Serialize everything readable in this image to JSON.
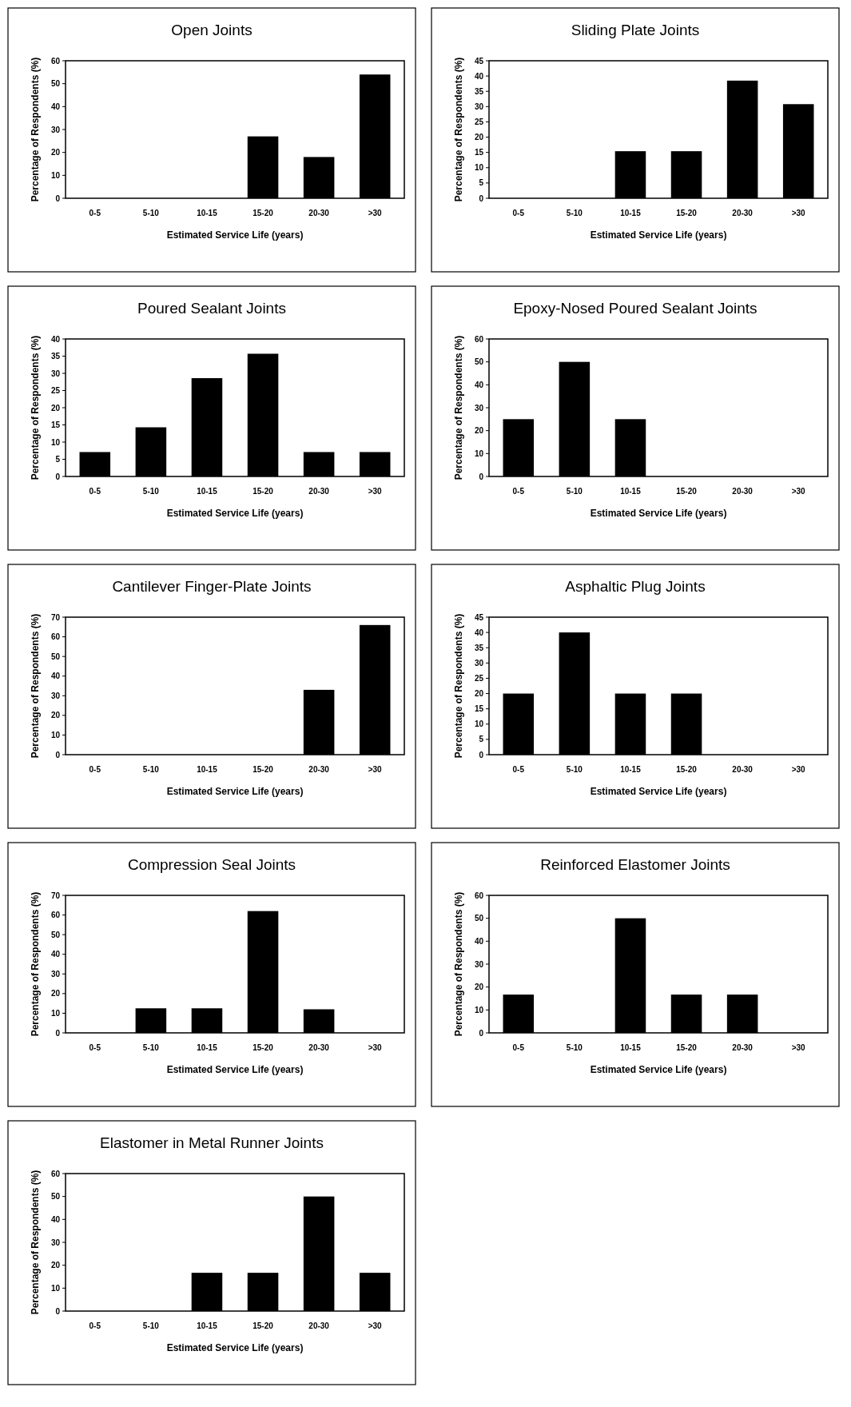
{
  "chart_data": [
    {
      "type": "bar",
      "title": "Open Joints",
      "xlabel": "Estimated Service Life (years)",
      "ylabel": "Percentage of Respondents (%)",
      "categories": [
        "0-5",
        "5-10",
        "10-15",
        "15-20",
        "20-30",
        ">30"
      ],
      "values": [
        0,
        0,
        0,
        27,
        18,
        54
      ],
      "color": "#000000",
      "ylim": [
        0,
        60
      ],
      "yticks": [
        0,
        10,
        20,
        30,
        40,
        50,
        60
      ]
    },
    {
      "type": "bar",
      "title": "Sliding Plate Joints",
      "xlabel": "Estimated Service Life (years)",
      "ylabel": "Percentage of Respondents (%)",
      "categories": [
        "0-5",
        "5-10",
        "10-15",
        "15-20",
        "20-30",
        ">30"
      ],
      "values": [
        0,
        0,
        15.4,
        15.4,
        38.5,
        30.8
      ],
      "color": "#000000",
      "ylim": [
        0,
        45
      ],
      "yticks": [
        0,
        5,
        10,
        15,
        20,
        25,
        30,
        35,
        40,
        45
      ]
    },
    {
      "type": "bar",
      "title": "Poured Sealant Joints",
      "xlabel": "Estimated Service Life (years)",
      "ylabel": "Percentage of Respondents (%)",
      "categories": [
        "0-5",
        "5-10",
        "10-15",
        "15-20",
        "20-30",
        ">30"
      ],
      "values": [
        7.1,
        14.3,
        28.6,
        35.7,
        7.1,
        7.1
      ],
      "color": "#000000",
      "ylim": [
        0,
        40
      ],
      "yticks": [
        0,
        5,
        10,
        15,
        20,
        25,
        30,
        35,
        40
      ]
    },
    {
      "type": "bar",
      "title": "Epoxy-Nosed Poured Sealant Joints",
      "xlabel": "Estimated Service Life (years)",
      "ylabel": "Percentage of Respondents (%)",
      "categories": [
        "0-5",
        "5-10",
        "10-15",
        "15-20",
        "20-30",
        ">30"
      ],
      "values": [
        25,
        50,
        25,
        0,
        0,
        0
      ],
      "color": "#000000",
      "ylim": [
        0,
        60
      ],
      "yticks": [
        0,
        10,
        20,
        30,
        40,
        50,
        60
      ]
    },
    {
      "type": "bar",
      "title": "Cantilever Finger-Plate Joints",
      "xlabel": "Estimated Service Life (years)",
      "ylabel": "Percentage of Respondents (%)",
      "categories": [
        "0-5",
        "5-10",
        "10-15",
        "15-20",
        "20-30",
        ">30"
      ],
      "values": [
        0,
        0,
        0,
        0,
        33,
        66
      ],
      "color": "#000000",
      "ylim": [
        0,
        70
      ],
      "yticks": [
        0,
        10,
        20,
        30,
        40,
        50,
        60,
        70
      ]
    },
    {
      "type": "bar",
      "title": "Asphaltic Plug Joints",
      "xlabel": "Estimated Service Life (years)",
      "ylabel": "Percentage of Respondents (%)",
      "categories": [
        "0-5",
        "5-10",
        "10-15",
        "15-20",
        "20-30",
        ">30"
      ],
      "values": [
        20,
        40,
        20,
        20,
        0,
        0
      ],
      "color": "#000000",
      "ylim": [
        0,
        45
      ],
      "yticks": [
        0,
        5,
        10,
        15,
        20,
        25,
        30,
        35,
        40,
        45
      ]
    },
    {
      "type": "bar",
      "title": "Compression Seal Joints",
      "xlabel": "Estimated Service Life (years)",
      "ylabel": "Percentage of Respondents (%)",
      "categories": [
        "0-5",
        "5-10",
        "10-15",
        "15-20",
        "20-30",
        ">30"
      ],
      "values": [
        0,
        12.5,
        12.5,
        62,
        12,
        0
      ],
      "color": "#000000",
      "ylim": [
        0,
        70
      ],
      "yticks": [
        0,
        10,
        20,
        30,
        40,
        50,
        60,
        70
      ]
    },
    {
      "type": "bar",
      "title": "Reinforced Elastomer Joints",
      "xlabel": "Estimated Service Life (years)",
      "ylabel": "Percentage of Respondents (%)",
      "categories": [
        "0-5",
        "5-10",
        "10-15",
        "15-20",
        "20-30",
        ">30"
      ],
      "values": [
        16.7,
        0,
        50,
        16.7,
        16.7,
        0
      ],
      "color": "#000000",
      "ylim": [
        0,
        60
      ],
      "yticks": [
        0,
        10,
        20,
        30,
        40,
        50,
        60
      ]
    },
    {
      "type": "bar",
      "title": "Elastomer in Metal Runner Joints",
      "xlabel": "Estimated Service Life (years)",
      "ylabel": "Percentage of Respondents (%)",
      "categories": [
        "0-5",
        "5-10",
        "10-15",
        "15-20",
        "20-30",
        ">30"
      ],
      "values": [
        0,
        0,
        16.7,
        16.7,
        50,
        16.7
      ],
      "color": "#000000",
      "ylim": [
        0,
        60
      ],
      "yticks": [
        0,
        10,
        20,
        30,
        40,
        50,
        60
      ]
    }
  ]
}
